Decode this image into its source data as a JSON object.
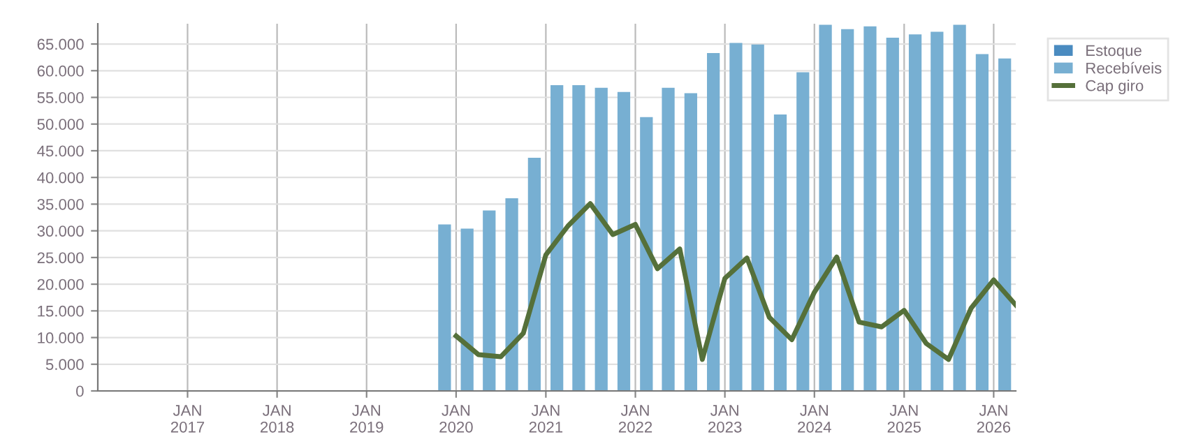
{
  "chart_data": {
    "type": "bar",
    "xlim": [
      "2016-01-01",
      "2026-04-01"
    ],
    "xticks": [
      {
        "value": "2017-01-01",
        "label": "JAN\n2017"
      },
      {
        "value": "2018-01-01",
        "label": "JAN\n2018"
      },
      {
        "value": "2019-01-01",
        "label": "JAN\n2019"
      },
      {
        "value": "2020-01-01",
        "label": "JAN\n2020"
      },
      {
        "value": "2021-01-01",
        "label": "JAN\n2021"
      },
      {
        "value": "2022-01-01",
        "label": "JAN\n2022"
      },
      {
        "value": "2023-01-01",
        "label": "JAN\n2023"
      },
      {
        "value": "2024-01-01",
        "label": "JAN\n2024"
      },
      {
        "value": "2025-01-01",
        "label": "JAN\n2025"
      },
      {
        "value": "2026-01-01",
        "label": "JAN\n2026"
      }
    ],
    "ylim": [
      0,
      68800
    ],
    "yticks": [
      {
        "value": 0,
        "label": "0"
      },
      {
        "value": 5000,
        "label": "5.000"
      },
      {
        "value": 10000,
        "label": "10.000"
      },
      {
        "value": 15000,
        "label": "15.000"
      },
      {
        "value": 20000,
        "label": "20.000"
      },
      {
        "value": 25000,
        "label": "25.000"
      },
      {
        "value": 30000,
        "label": "30.000"
      },
      {
        "value": 35000,
        "label": "35.000"
      },
      {
        "value": 40000,
        "label": "40.000"
      },
      {
        "value": 45000,
        "label": "45.000"
      },
      {
        "value": 50000,
        "label": "50.000"
      },
      {
        "value": 55000,
        "label": "55.000"
      },
      {
        "value": 60000,
        "label": "60.000"
      },
      {
        "value": 65000,
        "label": "65.000"
      }
    ],
    "grid": true,
    "legend": "right",
    "x": [
      "2019-11-15",
      "2020-02-15",
      "2020-05-15",
      "2020-08-15",
      "2020-11-15",
      "2021-02-15",
      "2021-05-15",
      "2021-08-15",
      "2021-11-15",
      "2022-02-15",
      "2022-05-15",
      "2022-08-15",
      "2022-11-15",
      "2023-02-15",
      "2023-05-15",
      "2023-08-15",
      "2023-11-15",
      "2024-02-15",
      "2024-05-15",
      "2024-08-15",
      "2024-11-15",
      "2025-02-15",
      "2025-05-15",
      "2025-08-15",
      "2025-11-15",
      "2026-02-15"
    ],
    "series": [
      {
        "name": "Estoque",
        "color": "#4a8bc0",
        "values": [
          null,
          null,
          null,
          null,
          null,
          null,
          null,
          null,
          null,
          null,
          null,
          null,
          null,
          null,
          null,
          null,
          null,
          null,
          null,
          null,
          null,
          null,
          null,
          null,
          null,
          null
        ]
      },
      {
        "name": "Recebíveis",
        "color": "#77afd2",
        "values": [
          31200,
          30400,
          33800,
          36100,
          43700,
          57300,
          57300,
          56800,
          56000,
          51300,
          56800,
          55800,
          63300,
          65200,
          64900,
          51800,
          59700,
          68600,
          67800,
          68300,
          66200,
          66800,
          67300,
          68600,
          63100,
          62300
        ]
      },
      {
        "name": "Cap giro",
        "color": "#55703a",
        "type": "line",
        "x": [
          "2020-01-01",
          "2020-04-01",
          "2020-07-01",
          "2020-10-01",
          "2021-01-01",
          "2021-04-01",
          "2021-07-01",
          "2021-10-01",
          "2022-01-01",
          "2022-04-01",
          "2022-07-01",
          "2022-10-01",
          "2023-01-01",
          "2023-04-01",
          "2023-07-01",
          "2023-10-01",
          "2024-01-01",
          "2024-04-01",
          "2024-07-01",
          "2024-10-01",
          "2025-01-01",
          "2025-04-01",
          "2025-07-01",
          "2025-10-01",
          "2026-01-01",
          "2026-04-01"
        ],
        "values": [
          10300,
          6800,
          6400,
          10800,
          25500,
          30900,
          35100,
          29300,
          31200,
          22900,
          26600,
          5900,
          21100,
          24900,
          13800,
          9600,
          18500,
          25100,
          12900,
          12000,
          15100,
          8900,
          5900,
          15500,
          20800,
          16100
        ]
      }
    ]
  }
}
